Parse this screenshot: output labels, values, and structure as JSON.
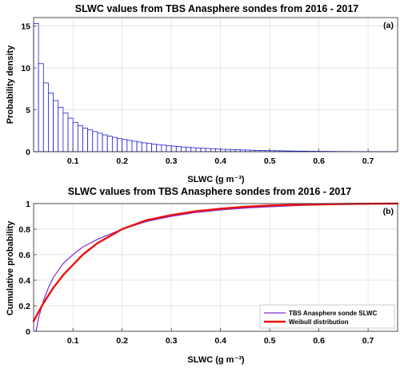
{
  "chart_data": [
    {
      "type": "bar",
      "title": "SLWC values from TBS Anasphere sondes from 2016 - 2017",
      "panel_label": "(a)",
      "xlabel": "SLWC (g m⁻³)",
      "ylabel": "Probability density",
      "xlim": [
        0.02,
        0.76
      ],
      "ylim": [
        0,
        16
      ],
      "xticks": [
        "0.1",
        "0.2",
        "0.3",
        "0.4",
        "0.5",
        "0.6",
        "0.7"
      ],
      "yticks": [
        "0",
        "5",
        "10",
        "15"
      ],
      "grid": true,
      "bar_color": "#1f1fd6",
      "bin_width": 0.01,
      "bin_start": 0.02,
      "values": [
        15.3,
        10.5,
        8.2,
        7.0,
        6.1,
        5.3,
        4.6,
        4.0,
        3.5,
        3.1,
        2.8,
        2.6,
        2.4,
        2.2,
        2.0,
        1.85,
        1.7,
        1.55,
        1.45,
        1.35,
        1.25,
        1.15,
        1.05,
        0.98,
        0.9,
        0.84,
        0.78,
        0.72,
        0.66,
        0.61,
        0.56,
        0.52,
        0.48,
        0.44,
        0.41,
        0.38,
        0.35,
        0.32,
        0.29,
        0.27,
        0.25,
        0.23,
        0.21,
        0.19,
        0.17,
        0.15,
        0.14,
        0.13,
        0.12,
        0.11,
        0.1,
        0.09,
        0.08,
        0.07,
        0.065,
        0.06,
        0.05,
        0.045,
        0.04,
        0.035,
        0.03,
        0.025,
        0.02,
        0.02,
        0.015,
        0.012,
        0.01,
        0.008,
        0.006,
        0.005,
        0.004,
        0.003,
        0.002,
        0.001
      ]
    },
    {
      "type": "line",
      "title": "SLWC values from TBS Anasphere sondes from 2016 - 2017",
      "panel_label": "(b)",
      "xlabel": "SLWC (g m⁻³)",
      "ylabel": "Cumulative probability",
      "xlim": [
        0.02,
        0.76
      ],
      "ylim": [
        0,
        1
      ],
      "xticks": [
        "0.1",
        "0.2",
        "0.3",
        "0.4",
        "0.5",
        "0.6",
        "0.7"
      ],
      "yticks": [
        "0",
        "0.2",
        "0.4",
        "0.6",
        "0.8",
        "1"
      ],
      "grid": true,
      "legend_position": "bottom-right",
      "series": [
        {
          "name": "TBS Anasphere sonde SLWC",
          "color": "#7b2fd0",
          "x": [
            0.025,
            0.03,
            0.04,
            0.05,
            0.06,
            0.08,
            0.1,
            0.12,
            0.15,
            0.2,
            0.25,
            0.3,
            0.35,
            0.4,
            0.45,
            0.5,
            0.55,
            0.6,
            0.65,
            0.7,
            0.76
          ],
          "y": [
            0.0,
            0.1,
            0.24,
            0.34,
            0.42,
            0.53,
            0.6,
            0.66,
            0.72,
            0.8,
            0.86,
            0.9,
            0.93,
            0.95,
            0.965,
            0.975,
            0.984,
            0.99,
            0.994,
            0.997,
            1.0
          ]
        },
        {
          "name": "Weibull distribution",
          "color": "#ee1111",
          "x": [
            0.02,
            0.03,
            0.04,
            0.05,
            0.06,
            0.08,
            0.1,
            0.12,
            0.15,
            0.2,
            0.25,
            0.3,
            0.35,
            0.4,
            0.45,
            0.5,
            0.55,
            0.6,
            0.65,
            0.7,
            0.76
          ],
          "y": [
            0.08,
            0.15,
            0.22,
            0.28,
            0.34,
            0.44,
            0.52,
            0.6,
            0.69,
            0.8,
            0.87,
            0.91,
            0.94,
            0.96,
            0.975,
            0.985,
            0.99,
            0.994,
            0.997,
            0.999,
            1.0
          ]
        }
      ]
    }
  ]
}
